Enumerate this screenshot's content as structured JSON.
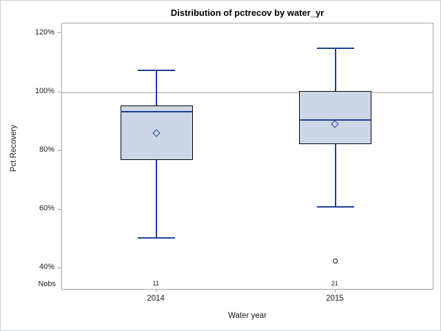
{
  "chart_data": {
    "type": "box",
    "title": "Distribution of pctrecov by water_yr",
    "xlabel": "Water year",
    "ylabel": "Pct Recovery",
    "categories": [
      "2014",
      "2015"
    ],
    "nobs_label": "Nobs",
    "y_tick_values": [
      40,
      60,
      80,
      100,
      120
    ],
    "y_tick_labels": [
      "40%",
      "60%",
      "80%",
      "100%",
      "120%"
    ],
    "ylim": [
      32.6,
      123.5
    ],
    "reference_line": 100,
    "grid": false,
    "legend": "none",
    "series": [
      {
        "category": "2014",
        "nobs": "11",
        "whisker_low": 50.5,
        "q1": 77,
        "median": 93.5,
        "q3": 95.5,
        "whisker_high": 107.5,
        "mean": 86,
        "outliers": []
      },
      {
        "category": "2015",
        "nobs": "21",
        "whisker_low": 61,
        "q1": 82.5,
        "median": 90.5,
        "q3": 100.5,
        "whisker_high": 115,
        "mean": 89,
        "outliers": [
          42.5
        ]
      }
    ],
    "colors": {
      "box_fill": "#ccd6e6",
      "box_border": "#000000",
      "line_blue": "#1b3e94",
      "frame_gray": "#a0a4a8",
      "outlier_black": "#000000"
    }
  }
}
